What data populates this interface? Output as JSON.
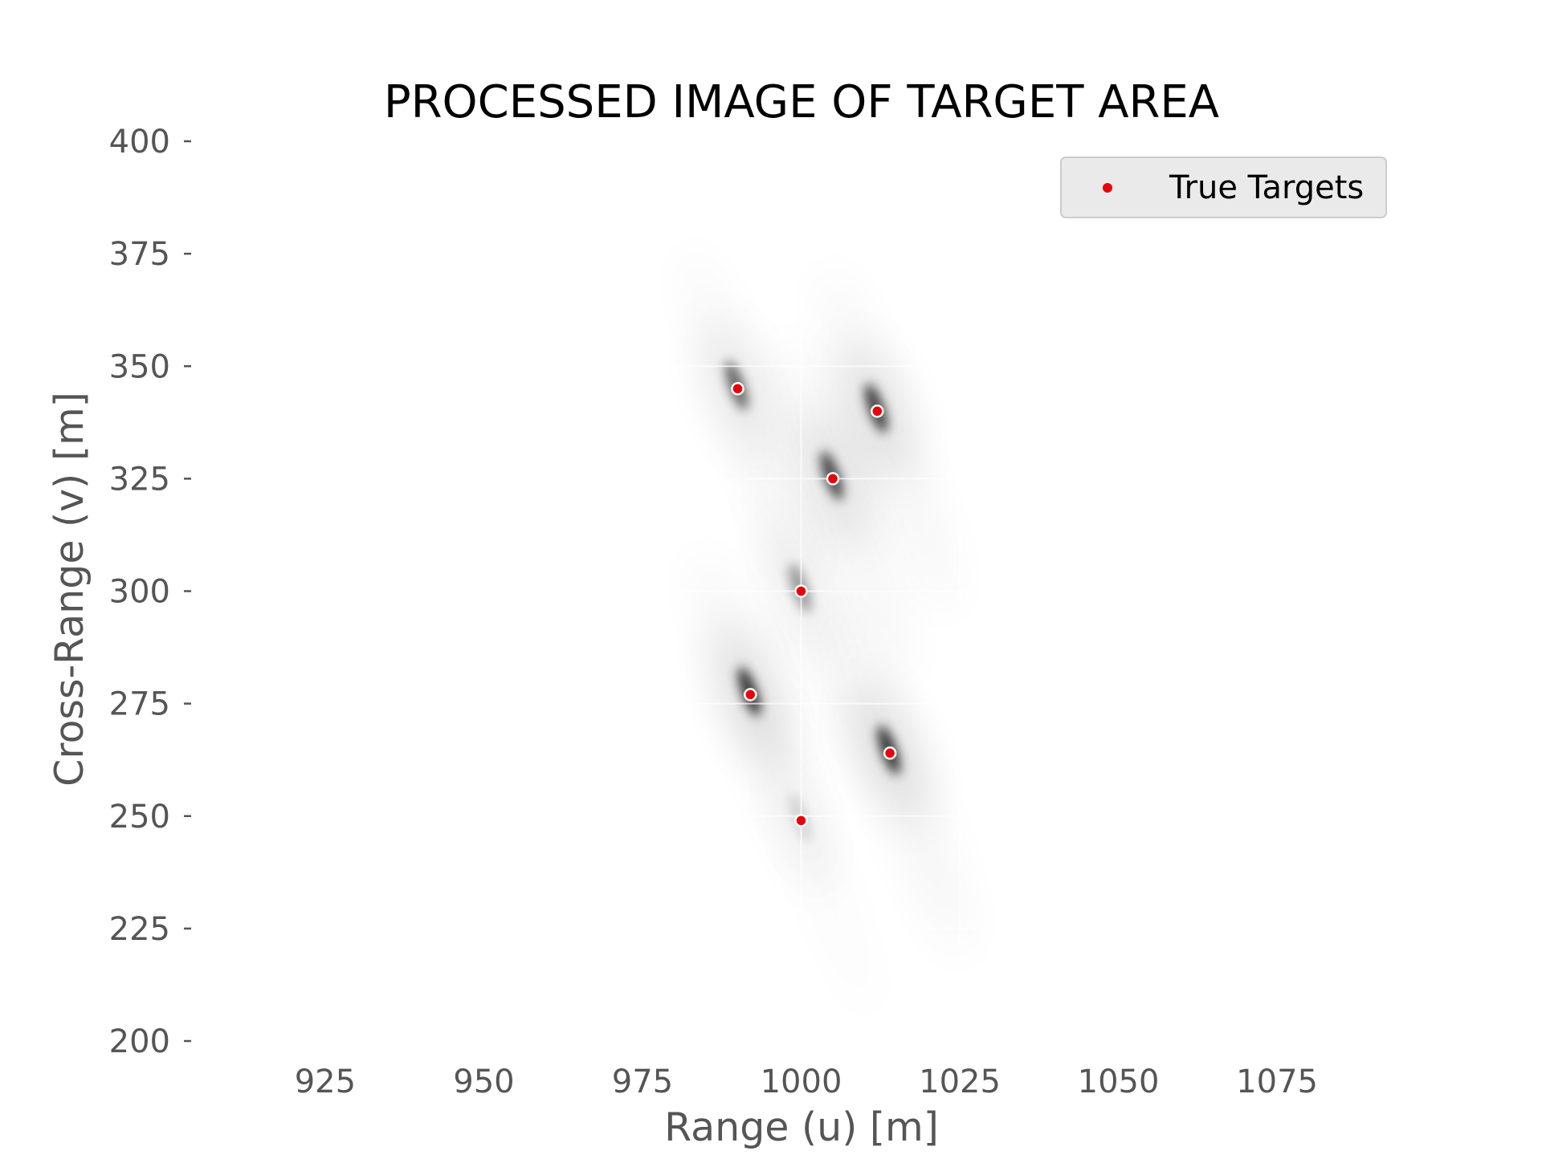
{
  "chart_data": {
    "type": "scatter",
    "title": "PROCESSED IMAGE OF TARGET AREA",
    "xlabel": "Range (u) [m]",
    "ylabel": "Cross-Range (v) [m]",
    "xlim": [
      904,
      1096
    ],
    "ylim": [
      200,
      400
    ],
    "x_ticks": [
      "925",
      "950",
      "975",
      "1000",
      "1025",
      "1050",
      "1075"
    ],
    "y_ticks": [
      "200",
      "225",
      "250",
      "275",
      "300",
      "325",
      "350",
      "375",
      "400"
    ],
    "x_tick_values": [
      925,
      950,
      975,
      1000,
      1025,
      1050,
      1075
    ],
    "y_tick_values": [
      200,
      225,
      250,
      275,
      300,
      325,
      350,
      375,
      400
    ],
    "grid": true,
    "legend_position": "top-right",
    "series": [
      {
        "name": "True Targets",
        "color": "#e8000b",
        "points": [
          {
            "x": 990,
            "y": 345
          },
          {
            "x": 1012,
            "y": 340
          },
          {
            "x": 1005,
            "y": 325
          },
          {
            "x": 1000,
            "y": 300
          },
          {
            "x": 992,
            "y": 277
          },
          {
            "x": 1014,
            "y": 264
          },
          {
            "x": 1000,
            "y": 249
          }
        ]
      }
    ],
    "background_image": {
      "description_kind": "grayscale intensity map",
      "colormap": "gray_r",
      "blobs": [
        {
          "x": 990,
          "y": 345,
          "intensity": 0.7
        },
        {
          "x": 1012,
          "y": 340,
          "intensity": 0.9
        },
        {
          "x": 1005,
          "y": 325,
          "intensity": 0.85
        },
        {
          "x": 1000,
          "y": 300,
          "intensity": 0.45
        },
        {
          "x": 992,
          "y": 277,
          "intensity": 0.95
        },
        {
          "x": 1014,
          "y": 264,
          "intensity": 0.95
        },
        {
          "x": 1000,
          "y": 249,
          "intensity": 0.15
        }
      ]
    }
  }
}
